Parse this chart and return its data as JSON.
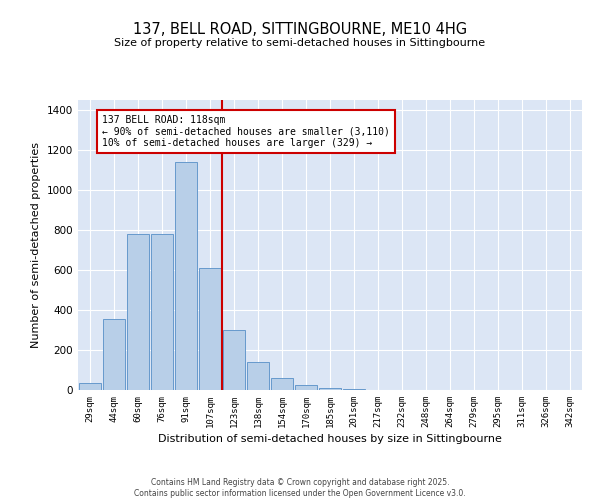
{
  "title": "137, BELL ROAD, SITTINGBOURNE, ME10 4HG",
  "subtitle": "Size of property relative to semi-detached houses in Sittingbourne",
  "xlabel": "Distribution of semi-detached houses by size in Sittingbourne",
  "ylabel": "Number of semi-detached properties",
  "categories": [
    "29sqm",
    "44sqm",
    "60sqm",
    "76sqm",
    "91sqm",
    "107sqm",
    "123sqm",
    "138sqm",
    "154sqm",
    "170sqm",
    "185sqm",
    "201sqm",
    "217sqm",
    "232sqm",
    "248sqm",
    "264sqm",
    "279sqm",
    "295sqm",
    "311sqm",
    "326sqm",
    "342sqm"
  ],
  "values": [
    35,
    355,
    780,
    780,
    1140,
    610,
    300,
    140,
    60,
    25,
    10,
    5,
    2,
    0,
    0,
    0,
    0,
    0,
    0,
    0,
    0
  ],
  "bar_color": "#b8cfe8",
  "bar_edge_color": "#6699cc",
  "vline_color": "#cc0000",
  "vline_pos": 6.5,
  "annotation_title": "137 BELL ROAD: 118sqm",
  "annotation_line1": "← 90% of semi-detached houses are smaller (3,110)",
  "annotation_line2": "10% of semi-detached houses are larger (329) →",
  "annotation_box_color": "#cc0000",
  "ylim": [
    0,
    1450
  ],
  "yticks": [
    0,
    200,
    400,
    600,
    800,
    1000,
    1200,
    1400
  ],
  "background_color": "#dce6f5",
  "footer_line1": "Contains HM Land Registry data © Crown copyright and database right 2025.",
  "footer_line2": "Contains public sector information licensed under the Open Government Licence v3.0."
}
